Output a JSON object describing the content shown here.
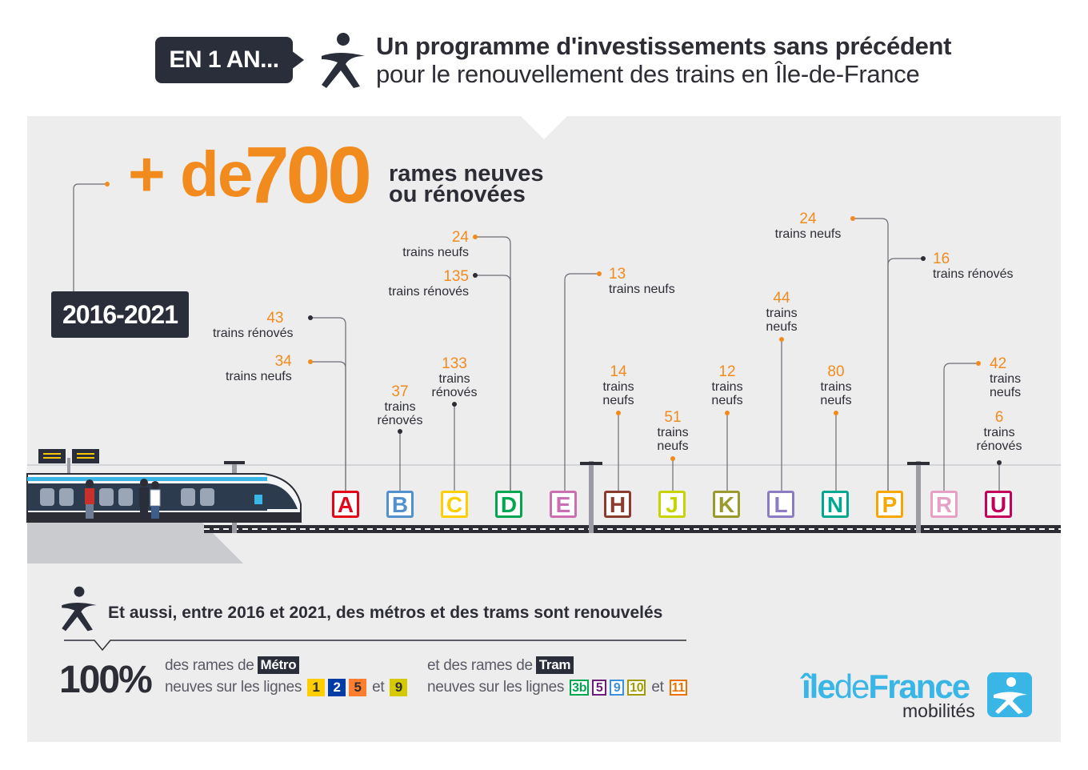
{
  "header": {
    "badge": "EN 1 AN...",
    "title_line1": "Un programme d'investissements sans précédent",
    "title_line2": "pour le renouvellement des trains en Île-de-France"
  },
  "headline": {
    "plus": "+ de",
    "number": "700",
    "sub_line1": "rames neuves",
    "sub_line2": "ou rénovées"
  },
  "period": "2016-2021",
  "colors": {
    "accent_orange": "#f28b1e",
    "dark": "#2a2e3a",
    "panel": "#ededee",
    "logo_blue": "#3ab6e6"
  },
  "rer_lines": [
    {
      "letter": "A",
      "color": "#e3051b",
      "labels": [
        {
          "num": "43",
          "text": "trains rénovés"
        },
        {
          "num": "34",
          "text": "trains neufs"
        }
      ]
    },
    {
      "letter": "B",
      "color": "#5291ce",
      "labels": [
        {
          "num": "37",
          "text1": "trains",
          "text2": "rénovés"
        }
      ]
    },
    {
      "letter": "C",
      "color": "#ffce00",
      "labels": [
        {
          "num": "133",
          "text1": "trains",
          "text2": "rénovés"
        }
      ]
    },
    {
      "letter": "D",
      "color": "#00a650",
      "labels": [
        {
          "num": "24",
          "text": "trains neufs"
        },
        {
          "num": "135",
          "text": "trains rénovés"
        }
      ]
    },
    {
      "letter": "E",
      "color": "#c96fb2",
      "labels": [
        {
          "num": "13",
          "text": "trains neufs"
        }
      ]
    },
    {
      "letter": "H",
      "color": "#8c3c2e",
      "labels": [
        {
          "num": "14",
          "text1": "trains",
          "text2": "neufs"
        }
      ]
    },
    {
      "letter": "J",
      "color": "#c8d400",
      "labels": [
        {
          "num": "51",
          "text1": "trains",
          "text2": "neufs"
        }
      ]
    },
    {
      "letter": "K",
      "color": "#9b9a2d",
      "labels": [
        {
          "num": "12",
          "text1": "trains",
          "text2": "neufs"
        }
      ]
    },
    {
      "letter": "L",
      "color": "#8e7cc3",
      "labels": [
        {
          "num": "44",
          "text1": "trains",
          "text2": "neufs"
        }
      ]
    },
    {
      "letter": "N",
      "color": "#00a88f",
      "labels": [
        {
          "num": "80",
          "text1": "trains",
          "text2": "neufs"
        }
      ]
    },
    {
      "letter": "P",
      "color": "#f6a800",
      "labels": [
        {
          "num": "24",
          "text": "trains neufs"
        },
        {
          "num": "16",
          "text": "trains rénovés"
        }
      ]
    },
    {
      "letter": "R",
      "color": "#e5a0c3",
      "labels": [
        {
          "num": "42",
          "text1": "trains",
          "text2": "neufs"
        }
      ]
    },
    {
      "letter": "U",
      "color": "#c4005a",
      "labels": [
        {
          "num": "6",
          "text1": "trains",
          "text2": "rénovés"
        }
      ]
    }
  ],
  "bottom": {
    "title": "Et aussi, entre 2016 et 2021, des métros et des trams sont renouvelés",
    "percent": "100%",
    "metro_line1": "des rames de",
    "metro_tag": "Métro",
    "metro_line2": "neuves sur les lignes",
    "metro_lines": [
      {
        "label": "1",
        "color": "#ffcd00"
      },
      {
        "label": "2",
        "color": "#003ca6"
      },
      {
        "label": "5",
        "color": "#ff7e2e"
      },
      {
        "label": "9",
        "color": "#d5c900"
      }
    ],
    "and": "et",
    "tram_line1": "et des rames de",
    "tram_tag": "Tram",
    "tram_line2": "neuves sur les lignes",
    "tram_lines": [
      {
        "label": "3b",
        "color": "#00a650"
      },
      {
        "label": "5",
        "color": "#6e1e78"
      },
      {
        "label": "9",
        "color": "#3c91dc"
      },
      {
        "label": "10",
        "color": "#a09b00"
      },
      {
        "label": "11",
        "color": "#ee7203"
      }
    ]
  },
  "logo": {
    "ile": "île",
    "de": "de",
    "france": "France",
    "sub": "mobilités"
  }
}
